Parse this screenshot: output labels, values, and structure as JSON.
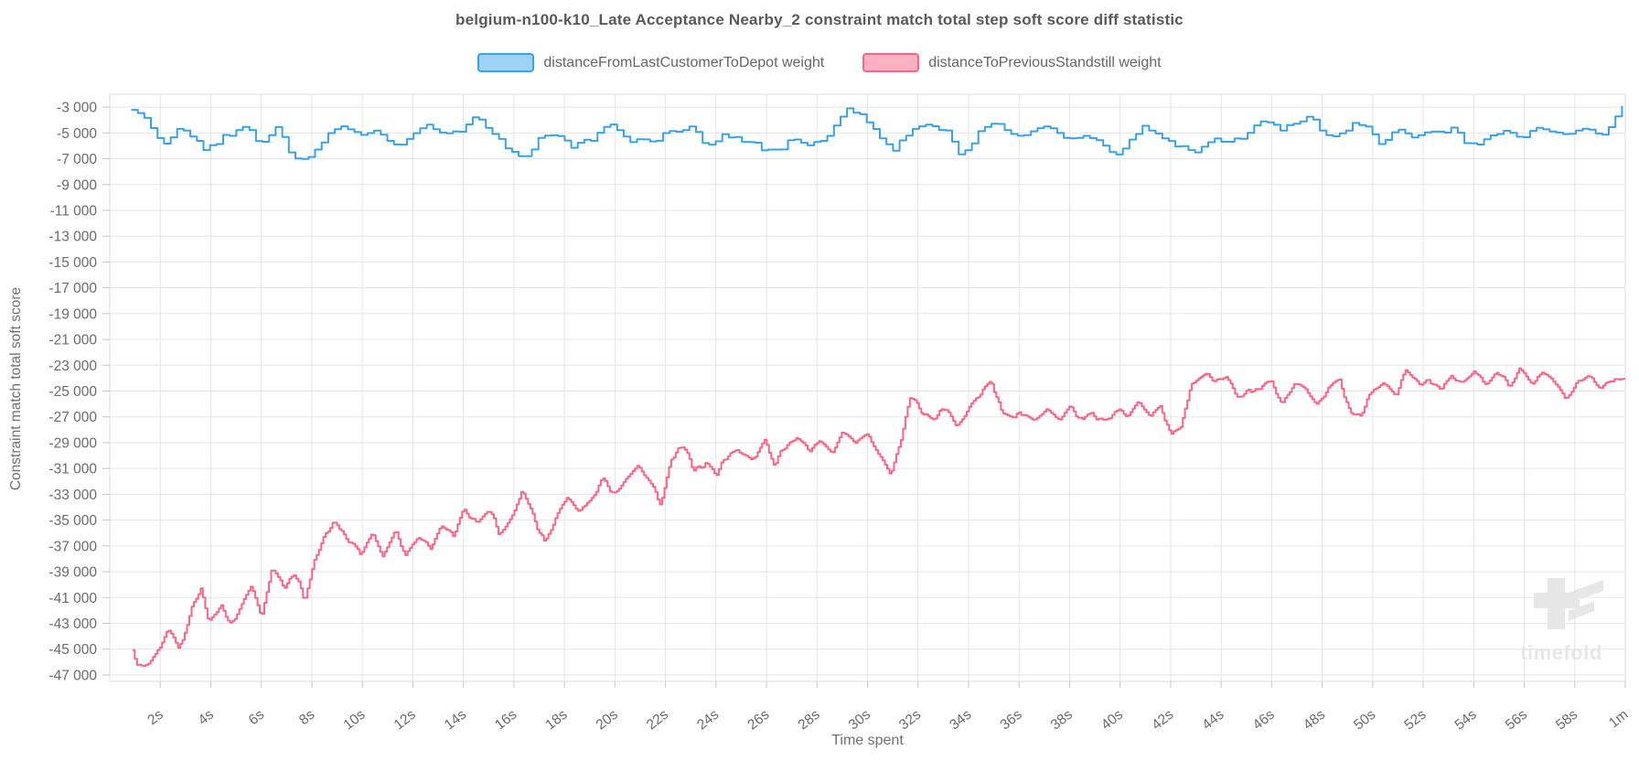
{
  "title": "belgium-n100-k10_Late Acceptance Nearby_2 constraint match total step soft score diff statistic",
  "watermark": {
    "text": "timefold"
  },
  "colors": {
    "grid": "#e5e5e5",
    "plot_border": "#dddddd",
    "tick_mark": "#c7c7c7",
    "tick_text": "#6b6b6b",
    "title_text": "#595959",
    "watermark": "#e7e7e7"
  },
  "chart_data": {
    "type": "line",
    "stepped": true,
    "grid": true,
    "legend_position": "top",
    "title": "belgium-n100-k10_Late Acceptance Nearby_2 constraint match total step soft score diff statistic",
    "xlabel": "Time spent",
    "ylabel": "Constraint match total soft score",
    "x_unit": "seconds",
    "xlim": [
      0,
      60
    ],
    "ylim": [
      -47500,
      -2000
    ],
    "y_ticks": [
      -3000,
      -5000,
      -7000,
      -9000,
      -11000,
      -13000,
      -15000,
      -17000,
      -19000,
      -21000,
      -23000,
      -25000,
      -27000,
      -29000,
      -31000,
      -33000,
      -35000,
      -37000,
      -39000,
      -41000,
      -43000,
      -45000,
      -47000
    ],
    "x_ticks": [
      {
        "t": 2,
        "label": "2s"
      },
      {
        "t": 4,
        "label": "4s"
      },
      {
        "t": 6,
        "label": "6s"
      },
      {
        "t": 8,
        "label": "8s"
      },
      {
        "t": 10,
        "label": "10s"
      },
      {
        "t": 12,
        "label": "12s"
      },
      {
        "t": 14,
        "label": "14s"
      },
      {
        "t": 16,
        "label": "16s"
      },
      {
        "t": 18,
        "label": "18s"
      },
      {
        "t": 20,
        "label": "20s"
      },
      {
        "t": 22,
        "label": "22s"
      },
      {
        "t": 24,
        "label": "24s"
      },
      {
        "t": 26,
        "label": "26s"
      },
      {
        "t": 28,
        "label": "28s"
      },
      {
        "t": 30,
        "label": "30s"
      },
      {
        "t": 32,
        "label": "32s"
      },
      {
        "t": 34,
        "label": "34s"
      },
      {
        "t": 36,
        "label": "36s"
      },
      {
        "t": 38,
        "label": "38s"
      },
      {
        "t": 40,
        "label": "40s"
      },
      {
        "t": 42,
        "label": "42s"
      },
      {
        "t": 44,
        "label": "44s"
      },
      {
        "t": 46,
        "label": "46s"
      },
      {
        "t": 48,
        "label": "48s"
      },
      {
        "t": 50,
        "label": "50s"
      },
      {
        "t": 52,
        "label": "52s"
      },
      {
        "t": 54,
        "label": "54s"
      },
      {
        "t": 56,
        "label": "56s"
      },
      {
        "t": 58,
        "label": "58s"
      },
      {
        "t": 60,
        "label": "1m"
      }
    ],
    "series": [
      {
        "name": "distanceFromLastCustomerToDepot weight",
        "color": "#36a2eb",
        "fill": "#9ed2f6",
        "noise_amplitude": 650,
        "sample_dt": 0.26,
        "seed": 7,
        "value_range": [
          -7600,
          -2600
        ],
        "anchors": [
          [
            0.85,
            -3500
          ],
          [
            1.2,
            -3800
          ],
          [
            1.6,
            -4600
          ],
          [
            2.1,
            -5900
          ],
          [
            2.6,
            -4900
          ],
          [
            3.1,
            -5500
          ],
          [
            3.7,
            -6600
          ],
          [
            4.4,
            -5600
          ],
          [
            5.2,
            -4200
          ],
          [
            5.9,
            -6300
          ],
          [
            6.6,
            -4600
          ],
          [
            7.3,
            -7400
          ],
          [
            7.9,
            -6500
          ],
          [
            8.6,
            -5000
          ],
          [
            9.2,
            -4300
          ],
          [
            9.9,
            -5200
          ],
          [
            10.6,
            -4700
          ],
          [
            11.2,
            -5700
          ],
          [
            11.9,
            -5400
          ],
          [
            12.6,
            -4300
          ],
          [
            13.2,
            -5000
          ],
          [
            13.9,
            -5200
          ],
          [
            14.5,
            -3800
          ],
          [
            15.2,
            -5100
          ],
          [
            15.9,
            -6500
          ],
          [
            16.4,
            -7600
          ],
          [
            17,
            -5400
          ],
          [
            17.7,
            -4800
          ],
          [
            18.3,
            -6000
          ],
          [
            19,
            -5600
          ],
          [
            19.6,
            -4300
          ],
          [
            20.3,
            -5400
          ],
          [
            21,
            -5200
          ],
          [
            21.6,
            -5400
          ],
          [
            22.3,
            -4900
          ],
          [
            23,
            -4200
          ],
          [
            23.6,
            -5600
          ],
          [
            24.3,
            -5600
          ],
          [
            25,
            -5300
          ],
          [
            25.6,
            -5700
          ],
          [
            26.3,
            -6300
          ],
          [
            27,
            -5500
          ],
          [
            27.6,
            -5900
          ],
          [
            28.3,
            -5600
          ],
          [
            28.9,
            -3700
          ],
          [
            29.4,
            -3500
          ],
          [
            30.1,
            -4600
          ],
          [
            30.9,
            -6700
          ],
          [
            31.6,
            -5100
          ],
          [
            32.2,
            -4500
          ],
          [
            33,
            -4400
          ],
          [
            33.7,
            -6900
          ],
          [
            34.4,
            -5100
          ],
          [
            35.1,
            -4300
          ],
          [
            35.9,
            -5100
          ],
          [
            36.6,
            -4700
          ],
          [
            37.3,
            -4800
          ],
          [
            38.1,
            -5400
          ],
          [
            38.9,
            -5500
          ],
          [
            39.6,
            -6600
          ],
          [
            40.3,
            -5600
          ],
          [
            41,
            -4500
          ],
          [
            41.7,
            -5200
          ],
          [
            42.4,
            -6200
          ],
          [
            43,
            -6900
          ],
          [
            43.6,
            -5600
          ],
          [
            44.3,
            -5900
          ],
          [
            45,
            -5000
          ],
          [
            45.6,
            -4300
          ],
          [
            46.3,
            -5000
          ],
          [
            47,
            -4200
          ],
          [
            47.5,
            -3600
          ],
          [
            48.2,
            -4900
          ],
          [
            48.9,
            -4700
          ],
          [
            49.6,
            -4300
          ],
          [
            50.3,
            -5800
          ],
          [
            51,
            -4500
          ],
          [
            51.7,
            -4800
          ],
          [
            52.3,
            -4900
          ],
          [
            53,
            -4300
          ],
          [
            53.7,
            -6300
          ],
          [
            54.4,
            -5800
          ],
          [
            55.1,
            -4600
          ],
          [
            55.8,
            -5200
          ],
          [
            56.5,
            -4900
          ],
          [
            57.2,
            -5100
          ],
          [
            57.9,
            -4700
          ],
          [
            58.6,
            -4900
          ],
          [
            59.2,
            -4700
          ],
          [
            59.7,
            -3400
          ],
          [
            60,
            -2800
          ]
        ]
      },
      {
        "name": "distanceToPreviousStandstill weight",
        "color": "#ff6384",
        "fill": "#ffb0c3",
        "noise_amplitude": 700,
        "sample_dt": 0.09,
        "seed": 13,
        "value_range": [
          -46500,
          -23200
        ],
        "anchors": [
          [
            0.9,
            -45000
          ],
          [
            1.1,
            -46300
          ],
          [
            1.5,
            -45500
          ],
          [
            2,
            -44600
          ],
          [
            2.3,
            -43100
          ],
          [
            2.7,
            -44900
          ],
          [
            3.2,
            -42200
          ],
          [
            3.6,
            -40900
          ],
          [
            3.9,
            -43300
          ],
          [
            4.4,
            -42100
          ],
          [
            4.8,
            -43600
          ],
          [
            5.2,
            -41600
          ],
          [
            5.6,
            -40200
          ],
          [
            6,
            -42600
          ],
          [
            6.4,
            -38600
          ],
          [
            6.9,
            -39900
          ],
          [
            7.3,
            -38700
          ],
          [
            7.7,
            -40700
          ],
          [
            8.1,
            -37800
          ],
          [
            8.6,
            -35400
          ],
          [
            9,
            -34900
          ],
          [
            9.5,
            -36600
          ],
          [
            9.9,
            -37900
          ],
          [
            10.4,
            -36100
          ],
          [
            10.8,
            -37600
          ],
          [
            11.3,
            -35900
          ],
          [
            11.7,
            -37900
          ],
          [
            12.2,
            -36400
          ],
          [
            12.7,
            -37300
          ],
          [
            13.1,
            -35500
          ],
          [
            13.6,
            -36500
          ],
          [
            14,
            -34100
          ],
          [
            14.5,
            -35100
          ],
          [
            15,
            -34200
          ],
          [
            15.4,
            -35900
          ],
          [
            15.9,
            -34400
          ],
          [
            16.3,
            -33200
          ],
          [
            16.8,
            -34900
          ],
          [
            17.2,
            -36400
          ],
          [
            17.7,
            -34100
          ],
          [
            18.1,
            -32900
          ],
          [
            18.6,
            -34600
          ],
          [
            19,
            -33400
          ],
          [
            19.5,
            -31900
          ],
          [
            20,
            -33300
          ],
          [
            20.4,
            -32300
          ],
          [
            20.9,
            -31200
          ],
          [
            21.3,
            -32300
          ],
          [
            21.8,
            -33900
          ],
          [
            22.2,
            -30300
          ],
          [
            22.7,
            -29400
          ],
          [
            23.1,
            -31100
          ],
          [
            23.6,
            -30100
          ],
          [
            24,
            -31500
          ],
          [
            24.5,
            -30100
          ],
          [
            25,
            -29500
          ],
          [
            25.4,
            -30700
          ],
          [
            25.9,
            -29200
          ],
          [
            26.3,
            -30900
          ],
          [
            26.8,
            -29300
          ],
          [
            27.2,
            -28500
          ],
          [
            27.7,
            -29700
          ],
          [
            28.1,
            -28900
          ],
          [
            28.6,
            -29900
          ],
          [
            29,
            -28300
          ],
          [
            29.5,
            -29400
          ],
          [
            30,
            -28000
          ],
          [
            30.4,
            -29600
          ],
          [
            30.9,
            -31300
          ],
          [
            31.3,
            -28900
          ],
          [
            31.7,
            -25300
          ],
          [
            32.2,
            -26900
          ],
          [
            32.6,
            -27300
          ],
          [
            33.1,
            -26400
          ],
          [
            33.5,
            -27700
          ],
          [
            34,
            -26500
          ],
          [
            34.4,
            -25500
          ],
          [
            34.9,
            -24500
          ],
          [
            35.3,
            -26900
          ],
          [
            35.8,
            -27200
          ],
          [
            36.2,
            -26400
          ],
          [
            36.7,
            -27100
          ],
          [
            37.1,
            -26300
          ],
          [
            37.6,
            -27300
          ],
          [
            38,
            -26500
          ],
          [
            38.5,
            -27600
          ],
          [
            38.9,
            -26700
          ],
          [
            39.4,
            -27200
          ],
          [
            39.8,
            -26400
          ],
          [
            40.3,
            -26900
          ],
          [
            40.7,
            -25800
          ],
          [
            41.2,
            -26800
          ],
          [
            41.6,
            -26000
          ],
          [
            42,
            -28400
          ],
          [
            42.4,
            -27700
          ],
          [
            42.8,
            -24100
          ],
          [
            43.3,
            -23900
          ],
          [
            43.7,
            -24900
          ],
          [
            44.2,
            -24200
          ],
          [
            44.6,
            -25500
          ],
          [
            45.1,
            -24500
          ],
          [
            45.5,
            -25200
          ],
          [
            46,
            -24300
          ],
          [
            46.4,
            -25700
          ],
          [
            46.9,
            -24400
          ],
          [
            47.3,
            -25000
          ],
          [
            47.8,
            -26200
          ],
          [
            48.2,
            -25300
          ],
          [
            48.7,
            -24600
          ],
          [
            49.1,
            -26700
          ],
          [
            49.5,
            -27000
          ],
          [
            50,
            -25200
          ],
          [
            50.4,
            -24500
          ],
          [
            50.9,
            -25300
          ],
          [
            51.3,
            -23700
          ],
          [
            51.8,
            -24500
          ],
          [
            52.2,
            -24000
          ],
          [
            52.7,
            -24800
          ],
          [
            53.1,
            -24100
          ],
          [
            53.6,
            -24700
          ],
          [
            54,
            -23800
          ],
          [
            54.5,
            -24600
          ],
          [
            54.9,
            -24000
          ],
          [
            55.4,
            -24700
          ],
          [
            55.8,
            -23300
          ],
          [
            56.3,
            -24100
          ],
          [
            56.7,
            -23500
          ],
          [
            57.2,
            -25000
          ],
          [
            57.6,
            -25400
          ],
          [
            58.1,
            -23900
          ],
          [
            58.5,
            -23600
          ],
          [
            59,
            -24400
          ],
          [
            59.4,
            -23700
          ],
          [
            59.8,
            -24600
          ],
          [
            60.05,
            -24300
          ]
        ]
      }
    ]
  }
}
